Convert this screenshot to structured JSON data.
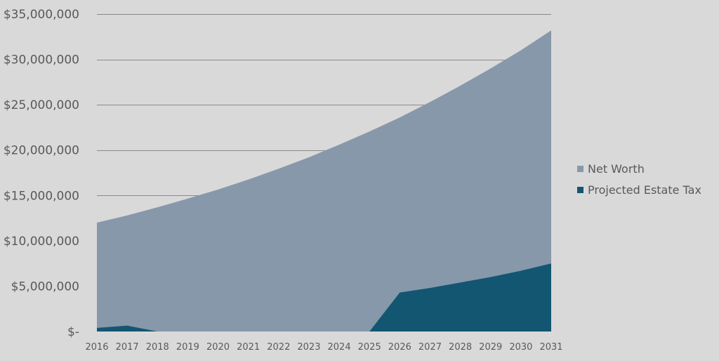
{
  "colors": {
    "background": "#d9d9d9",
    "net_worth": "#8798aa",
    "estate_tax": "#135672",
    "gridline": "#8a8a8a",
    "text": "#595959"
  },
  "chart_data": {
    "type": "area",
    "x": [
      "2016",
      "2017",
      "2018",
      "2019",
      "2020",
      "2021",
      "2022",
      "2023",
      "2024",
      "2025",
      "2026",
      "2027",
      "2028",
      "2029",
      "2030",
      "2031"
    ],
    "series": [
      {
        "name": "Net Worth",
        "color": "#8798aa",
        "values": [
          12000000,
          12800000,
          13700000,
          14650000,
          15650000,
          16750000,
          17950000,
          19200000,
          20600000,
          22050000,
          23600000,
          25300000,
          27100000,
          29000000,
          31000000,
          33200000
        ]
      },
      {
        "name": "Projected Estate Tax",
        "color": "#135672",
        "values": [
          400000,
          650000,
          0,
          0,
          0,
          0,
          0,
          0,
          0,
          0,
          4300000,
          4800000,
          5400000,
          6000000,
          6700000,
          7500000
        ]
      }
    ],
    "yticks": [
      {
        "value": 0,
        "label": "$-"
      },
      {
        "value": 5000000,
        "label": "$5,000,000"
      },
      {
        "value": 10000000,
        "label": "$10,000,000"
      },
      {
        "value": 15000000,
        "label": "$15,000,000"
      },
      {
        "value": 20000000,
        "label": "$20,000,000"
      },
      {
        "value": 25000000,
        "label": "$25,000,000"
      },
      {
        "value": 30000000,
        "label": "$30,000,000"
      },
      {
        "value": 35000000,
        "label": "$35,000,000"
      }
    ],
    "ylim": [
      0,
      35000000
    ],
    "grid": true,
    "legend_position": "right"
  }
}
